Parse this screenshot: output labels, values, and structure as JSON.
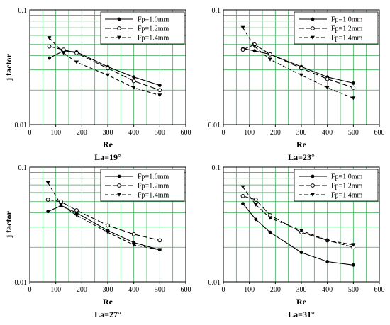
{
  "chart_data": [
    {
      "type": "line",
      "caption": "La=19°",
      "xlabel": "Re",
      "ylabel": "j factor",
      "xlim": [
        0,
        600
      ],
      "ylim": [
        0.01,
        0.1
      ],
      "y_scale": "log",
      "grid": true,
      "legend_position": "top-right",
      "x_ticks": [
        "0",
        "100",
        "200",
        "300",
        "400",
        "500",
        "600"
      ],
      "y_ticks": [
        "0.01",
        "0.1"
      ],
      "series": [
        {
          "name": "Fp=1.0mm",
          "x": [
            75,
            130,
            180,
            300,
            400,
            500
          ],
          "y": [
            0.038,
            0.044,
            0.043,
            0.032,
            0.026,
            0.022
          ]
        },
        {
          "name": "Fp=1.2mm",
          "x": [
            75,
            130,
            180,
            300,
            400,
            500
          ],
          "y": [
            0.048,
            0.045,
            0.042,
            0.031,
            0.024,
            0.02
          ]
        },
        {
          "name": "Fp=1.4mm",
          "x": [
            75,
            130,
            180,
            300,
            400,
            500
          ],
          "y": [
            0.057,
            0.042,
            0.035,
            0.027,
            0.021,
            0.018
          ]
        }
      ]
    },
    {
      "type": "line",
      "caption": "La=23°",
      "xlabel": "Re",
      "ylabel": "",
      "xlim": [
        0,
        600
      ],
      "ylim": [
        0.01,
        0.1
      ],
      "y_scale": "log",
      "grid": true,
      "legend_position": "top-right",
      "x_ticks": [
        "0",
        "100",
        "200",
        "300",
        "400",
        "500",
        "600"
      ],
      "y_ticks": [
        "0.01",
        "0.1"
      ],
      "series": [
        {
          "name": "Fp=1.0mm",
          "x": [
            75,
            120,
            180,
            300,
            400,
            500
          ],
          "y": [
            0.046,
            0.044,
            0.041,
            0.032,
            0.026,
            0.023
          ]
        },
        {
          "name": "Fp=1.2mm",
          "x": [
            75,
            120,
            180,
            300,
            400,
            500
          ],
          "y": [
            0.045,
            0.05,
            0.041,
            0.031,
            0.025,
            0.021
          ]
        },
        {
          "name": "Fp=1.4mm",
          "x": [
            75,
            120,
            180,
            300,
            400,
            500
          ],
          "y": [
            0.07,
            0.048,
            0.037,
            0.027,
            0.021,
            0.017
          ]
        }
      ]
    },
    {
      "type": "line",
      "caption": "La=27°",
      "xlabel": "Re",
      "ylabel": "j factor",
      "xlim": [
        0,
        600
      ],
      "ylim": [
        0.01,
        0.1
      ],
      "y_scale": "log",
      "grid": true,
      "legend_position": "top-right",
      "x_ticks": [
        "0",
        "100",
        "200",
        "300",
        "400",
        "500",
        "600"
      ],
      "y_ticks": [
        "0.01",
        "0.1"
      ],
      "series": [
        {
          "name": "Fp=1.0mm",
          "x": [
            70,
            120,
            180,
            300,
            400,
            500
          ],
          "y": [
            0.041,
            0.046,
            0.04,
            0.028,
            0.022,
            0.019
          ]
        },
        {
          "name": "Fp=1.2mm",
          "x": [
            70,
            120,
            180,
            300,
            400,
            500
          ],
          "y": [
            0.052,
            0.05,
            0.042,
            0.031,
            0.026,
            0.023
          ]
        },
        {
          "name": "Fp=1.4mm",
          "x": [
            70,
            120,
            180,
            300,
            400,
            500
          ],
          "y": [
            0.073,
            0.047,
            0.038,
            0.027,
            0.021,
            0.019
          ]
        }
      ]
    },
    {
      "type": "line",
      "caption": "La=31°",
      "xlabel": "Re",
      "ylabel": "",
      "xlim": [
        0,
        600
      ],
      "ylim": [
        0.01,
        0.1
      ],
      "y_scale": "log",
      "grid": true,
      "legend_position": "top-right",
      "x_ticks": [
        "0",
        "100",
        "200",
        "300",
        "400",
        "500",
        "600"
      ],
      "y_ticks": [
        "0.01",
        "0.1"
      ],
      "series": [
        {
          "name": "Fp=1.0mm",
          "x": [
            75,
            125,
            180,
            300,
            400,
            500
          ],
          "y": [
            0.048,
            0.035,
            0.027,
            0.018,
            0.015,
            0.014
          ]
        },
        {
          "name": "Fp=1.2mm",
          "x": [
            75,
            125,
            180,
            300,
            400,
            500
          ],
          "y": [
            0.056,
            0.052,
            0.038,
            0.027,
            0.023,
            0.02
          ]
        },
        {
          "name": "Fp=1.4mm",
          "x": [
            75,
            125,
            180,
            300,
            400,
            500
          ],
          "y": [
            0.067,
            0.047,
            0.036,
            0.028,
            0.023,
            0.021
          ]
        }
      ]
    }
  ],
  "series_styles": [
    {
      "marker": "filled-circle",
      "dash": "solid"
    },
    {
      "marker": "open-circle",
      "dash": "long-dash"
    },
    {
      "marker": "filled-triangle-down",
      "dash": "dash"
    }
  ],
  "colors": {
    "grid": "#3cae5a",
    "axis": "#000000",
    "line": "#000000",
    "background": "#ffffff"
  }
}
